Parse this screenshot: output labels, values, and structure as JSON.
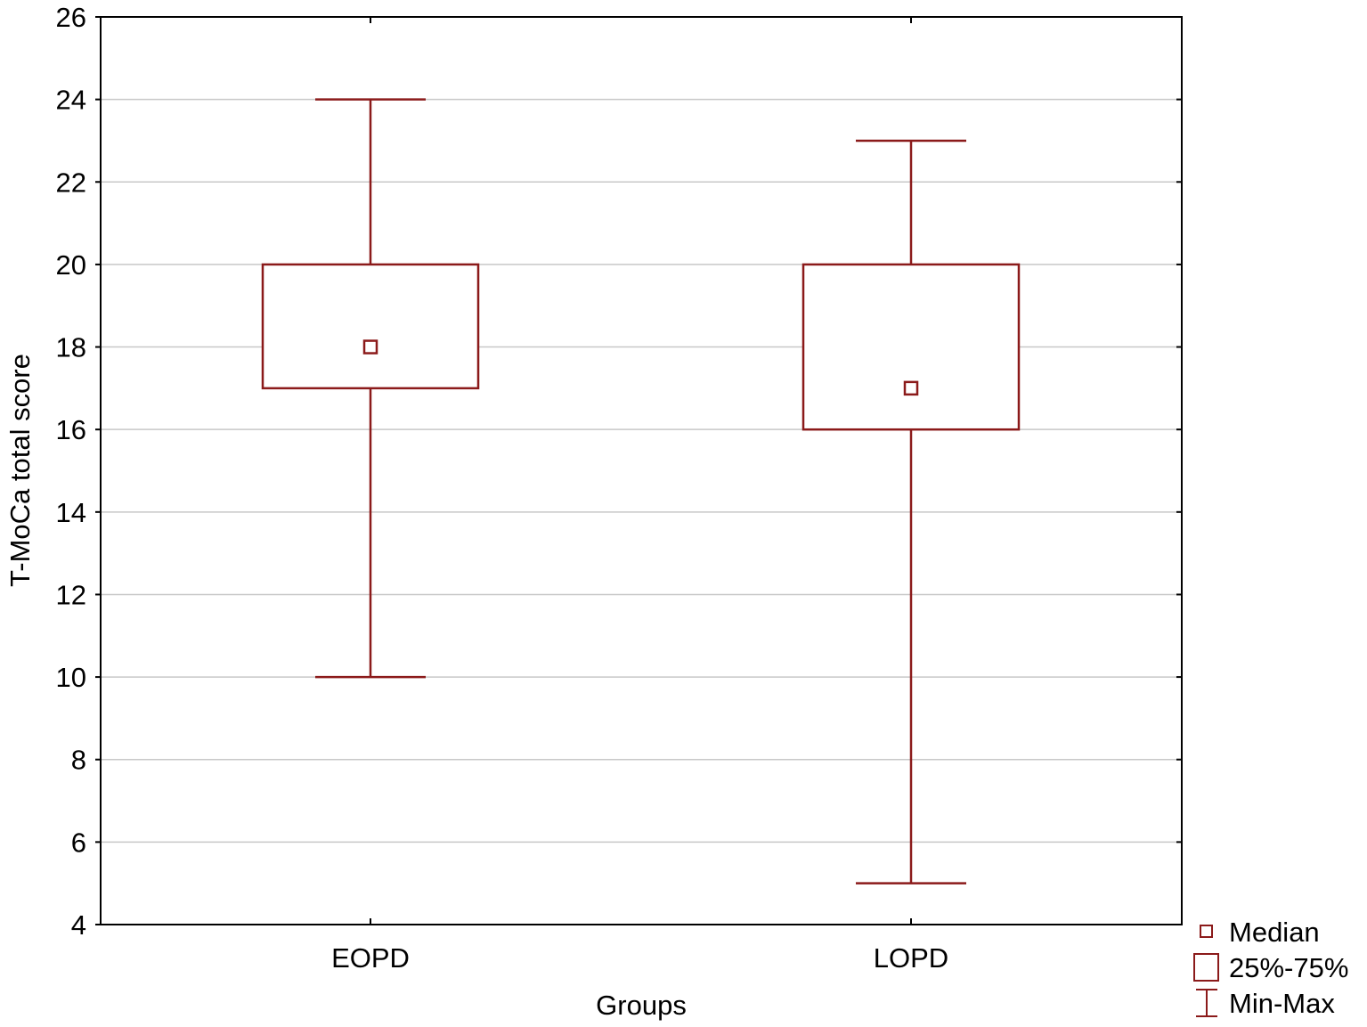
{
  "chart_data": {
    "type": "boxplot",
    "xlabel": "Groups",
    "ylabel": "T-MoCa total score",
    "ylim": [
      4,
      26
    ],
    "yticks": [
      4,
      6,
      8,
      10,
      12,
      14,
      16,
      18,
      20,
      22,
      24,
      26
    ],
    "grid": true,
    "color": "#8b1a1a",
    "categories": [
      "EOPD",
      "LOPD"
    ],
    "groups": [
      {
        "name": "EOPD",
        "min": 10,
        "q1": 17,
        "median": 18,
        "q3": 20,
        "max": 24
      },
      {
        "name": "LOPD",
        "min": 5,
        "q1": 16,
        "median": 17,
        "q3": 20,
        "max": 23
      }
    ],
    "legend": {
      "position": "bottom-right",
      "items": [
        {
          "symbol": "median",
          "label": "Median"
        },
        {
          "symbol": "box",
          "label": "25%-75%"
        },
        {
          "symbol": "whisker",
          "label": "Min-Max"
        }
      ]
    }
  }
}
